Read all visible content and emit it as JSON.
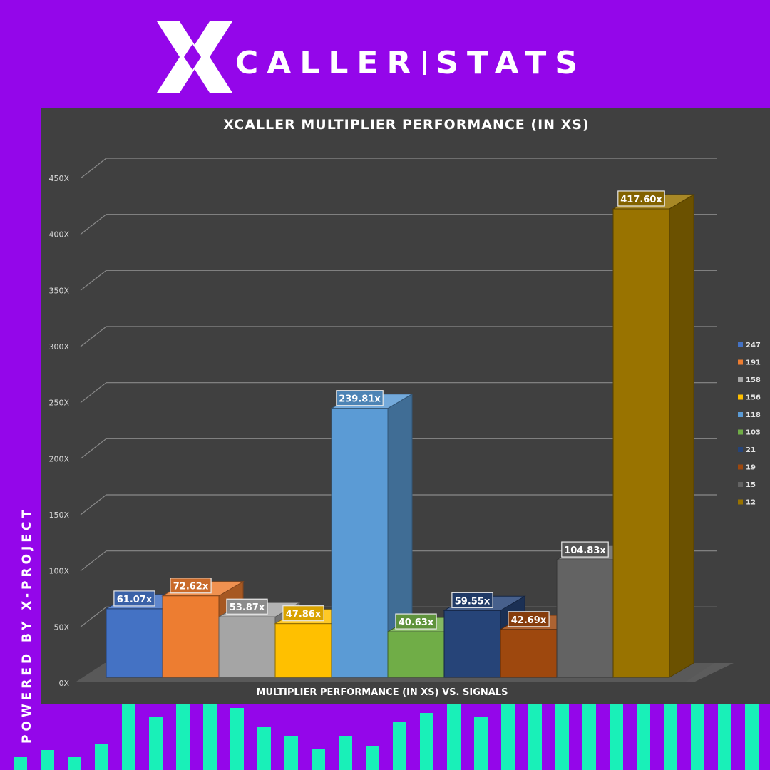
{
  "brand": {
    "name_left": "CALLER",
    "name_right": "STATS"
  },
  "side_caption": "POWERED BY X-PROJECT",
  "colors": {
    "background": "#9406ea",
    "panel": "#404040",
    "accent_bars": "#19f0b8"
  },
  "decor_bar_levels": [
    0.19,
    0.3,
    0.19,
    0.4,
    1.0,
    0.81,
    1.0,
    1.0,
    0.94,
    0.64,
    0.51,
    0.32,
    0.51,
    0.36,
    0.72,
    0.86,
    1.0,
    0.81,
    1.0,
    1.0,
    1.0,
    1.0,
    1.0,
    1.0,
    1.0,
    1.0,
    1.0,
    1.0
  ],
  "chart_data": {
    "type": "bar",
    "title": "XCALLER MULTIPLIER PERFORMANCE (IN XS)",
    "xlabel": "MULTIPLIER PERFORMANCE (IN XS) VS. SIGNALS",
    "ylabel": "",
    "ylim": [
      0,
      450
    ],
    "y_ticks": [
      "0X",
      "50X",
      "100X",
      "150X",
      "200X",
      "250X",
      "300X",
      "350X",
      "400X",
      "450X"
    ],
    "grid": true,
    "legend_position": "right",
    "series": [
      {
        "name": "247",
        "value": 61.07,
        "label": "61.07x",
        "color": "#4472c4"
      },
      {
        "name": "191",
        "value": 72.62,
        "label": "72.62x",
        "color": "#ed7d31"
      },
      {
        "name": "158",
        "value": 53.87,
        "label": "53.87x",
        "color": "#a5a5a5"
      },
      {
        "name": "156",
        "value": 47.86,
        "label": "47.86x",
        "color": "#ffc000"
      },
      {
        "name": "118",
        "value": 239.81,
        "label": "239.81x",
        "color": "#5b9bd5"
      },
      {
        "name": "103",
        "value": 40.63,
        "label": "40.63x",
        "color": "#70ad47"
      },
      {
        "name": "21",
        "value": 59.55,
        "label": "59.55x",
        "color": "#264478"
      },
      {
        "name": "19",
        "value": 42.69,
        "label": "42.69x",
        "color": "#9e480e"
      },
      {
        "name": "15",
        "value": 104.83,
        "label": "104.83x",
        "color": "#636363"
      },
      {
        "name": "12",
        "value": 417.6,
        "label": "417.60x",
        "color": "#997300"
      }
    ]
  }
}
